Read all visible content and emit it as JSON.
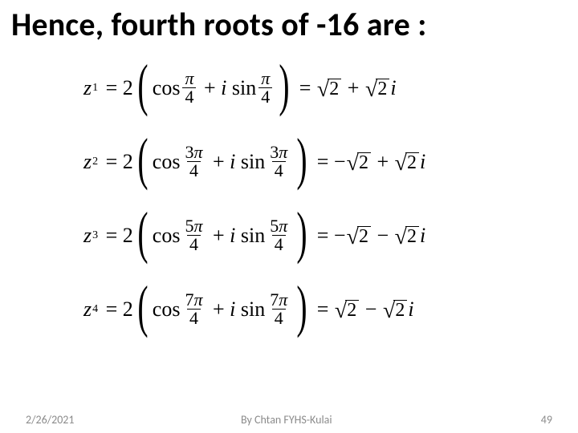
{
  "title": "Hence, fourth roots of -16 are :",
  "equations": [
    {
      "idx": "1",
      "numer": "π",
      "s1": "",
      "s2": "",
      "rhs_i_coeff": ""
    },
    {
      "idx": "2",
      "numer": "3π",
      "s1": "−",
      "s2": "",
      "rhs_i_coeff": ""
    },
    {
      "idx": "3",
      "numer": "5π",
      "s1": "−",
      "s2": "−",
      "rhs_i_coeff": ""
    },
    {
      "idx": "4",
      "numer": "7π",
      "s1": "",
      "s2": "−",
      "rhs_i_coeff": ""
    }
  ],
  "denom": "4",
  "coeff": "2",
  "rad": "2",
  "footer": {
    "date": "2/26/2021",
    "author": "By Chtan   FYHS-Kulai",
    "page": "49"
  },
  "colors": {
    "text": "#000000",
    "footer": "#8b8b8b",
    "background": "#ffffff"
  }
}
